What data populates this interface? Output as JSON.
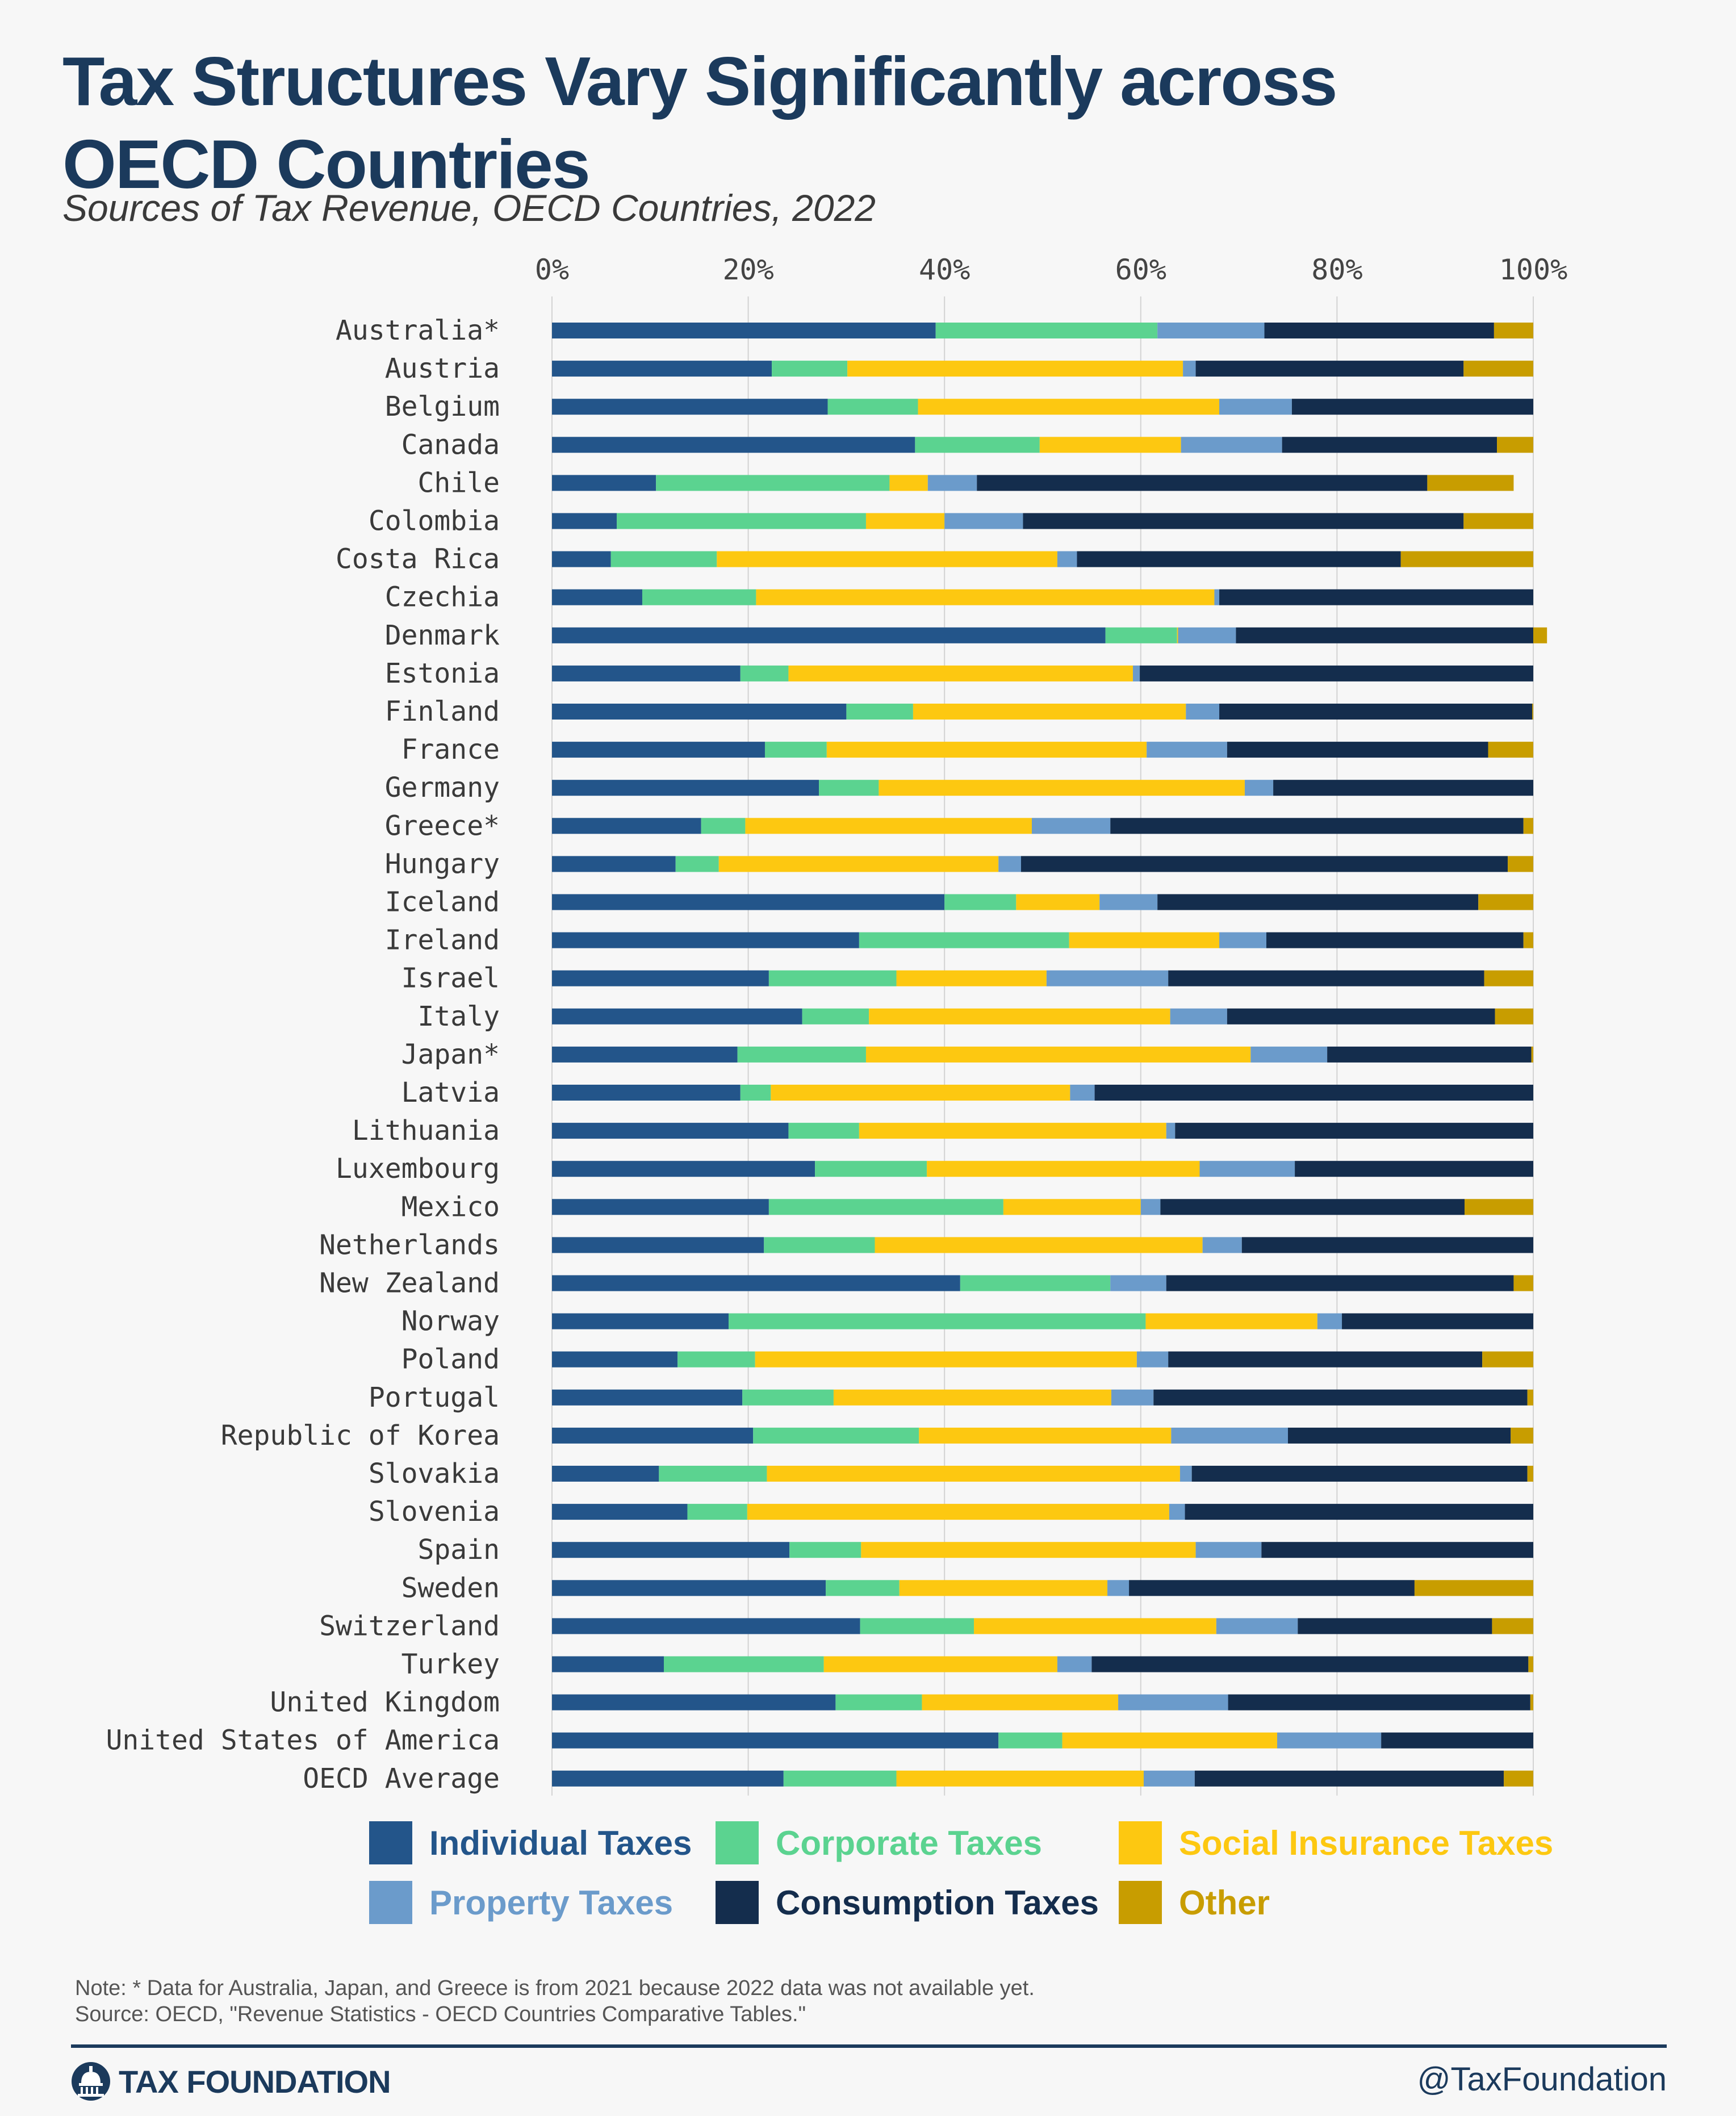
{
  "title": "Tax Structures Vary Significantly across OECD Countries",
  "subtitle": "Sources of Tax Revenue, OECD Countries, 2022",
  "chart_data": {
    "type": "bar",
    "orientation": "horizontal",
    "stacked": true,
    "x_ticks": [
      "0%",
      "20%",
      "40%",
      "60%",
      "80%",
      "100%"
    ],
    "xlim": [
      0,
      100
    ],
    "grid": true,
    "legend_position": "bottom",
    "categories": [
      "Australia*",
      "Austria",
      "Belgium",
      "Canada",
      "Chile",
      "Colombia",
      "Costa Rica",
      "Czechia",
      "Denmark",
      "Estonia",
      "Finland",
      "France",
      "Germany",
      "Greece*",
      "Hungary",
      "Iceland",
      "Ireland",
      "Israel",
      "Italy",
      "Japan*",
      "Latvia",
      "Lithuania",
      "Luxembourg",
      "Mexico",
      "Netherlands",
      "New Zealand",
      "Norway",
      "Poland",
      "Portugal",
      "Republic of Korea",
      "Slovakia",
      "Slovenia",
      "Spain",
      "Sweden",
      "Switzerland",
      "Turkey",
      "United Kingdom",
      "United States of America",
      "OECD Average"
    ],
    "series": [
      {
        "name": "Individual Taxes",
        "color": "#23558a",
        "values": [
          39.1,
          22.4,
          28.1,
          37.0,
          10.6,
          6.6,
          6.0,
          9.2,
          56.4,
          19.2,
          30.0,
          21.7,
          27.2,
          15.2,
          12.6,
          40.0,
          31.3,
          22.1,
          25.5,
          18.9,
          19.2,
          24.1,
          26.8,
          22.1,
          21.6,
          41.6,
          18.0,
          12.8,
          19.4,
          20.5,
          10.9,
          13.8,
          24.2,
          27.9,
          31.4,
          11.4,
          28.9,
          45.5,
          23.6
        ]
      },
      {
        "name": "Corporate Taxes",
        "color": "#5bd390",
        "values": [
          22.6,
          7.7,
          9.2,
          12.7,
          23.8,
          25.4,
          10.8,
          11.6,
          7.3,
          4.9,
          6.8,
          6.3,
          6.1,
          4.5,
          4.4,
          7.3,
          21.4,
          13.0,
          6.8,
          13.1,
          3.1,
          7.2,
          11.4,
          23.9,
          11.3,
          15.3,
          42.5,
          7.9,
          9.3,
          16.9,
          11.0,
          6.1,
          7.3,
          7.5,
          11.6,
          16.3,
          8.8,
          6.5,
          11.5
        ]
      },
      {
        "name": "Social Insurance Taxes",
        "color": "#fdc811",
        "values": [
          0.0,
          34.2,
          30.7,
          14.4,
          3.9,
          8.0,
          34.7,
          46.7,
          0.1,
          35.1,
          27.8,
          32.6,
          37.3,
          29.2,
          28.5,
          8.5,
          15.3,
          15.3,
          30.7,
          39.2,
          30.5,
          31.3,
          27.8,
          14.0,
          33.4,
          0.0,
          17.5,
          38.9,
          28.3,
          25.7,
          42.1,
          43.0,
          34.1,
          21.2,
          24.7,
          23.8,
          20.0,
          21.9,
          25.2
        ]
      },
      {
        "name": "Property Taxes",
        "color": "#6b9bcb",
        "values": [
          10.9,
          1.3,
          7.4,
          10.3,
          5.0,
          8.0,
          2.0,
          0.5,
          5.9,
          0.7,
          3.4,
          8.2,
          2.9,
          8.0,
          2.3,
          5.9,
          4.8,
          12.4,
          5.8,
          7.8,
          2.5,
          0.9,
          9.7,
          2.0,
          4.0,
          5.7,
          2.5,
          3.2,
          4.3,
          11.9,
          1.2,
          1.6,
          6.7,
          2.2,
          8.3,
          3.5,
          11.2,
          10.6,
          5.2
        ]
      },
      {
        "name": "Consumption Taxes",
        "color": "#142d4d",
        "values": [
          23.4,
          27.3,
          24.6,
          21.9,
          45.9,
          44.9,
          33.0,
          32.0,
          30.3,
          40.1,
          31.9,
          26.6,
          26.5,
          42.1,
          49.6,
          32.7,
          26.2,
          32.2,
          27.3,
          20.8,
          44.7,
          36.5,
          24.3,
          31.0,
          29.7,
          35.4,
          19.5,
          32.0,
          38.1,
          22.7,
          34.2,
          35.5,
          27.7,
          29.1,
          19.8,
          44.5,
          30.8,
          15.5,
          31.5
        ]
      },
      {
        "name": "Other",
        "color": "#c89d00",
        "values": [
          4.0,
          7.1,
          0.0,
          3.7,
          8.8,
          7.1,
          13.5,
          0.0,
          1.4,
          0.0,
          0.1,
          4.6,
          0.0,
          1.0,
          2.6,
          5.6,
          1.0,
          5.0,
          3.9,
          0.2,
          0.0,
          0.0,
          0.0,
          7.0,
          0.0,
          2.0,
          0.0,
          5.2,
          0.6,
          2.3,
          0.6,
          0.0,
          0.0,
          12.1,
          4.2,
          0.5,
          0.3,
          0.0,
          3.0
        ]
      }
    ]
  },
  "legend": {
    "items": [
      {
        "label": "Individual Taxes",
        "color": "#23558a",
        "text_color": "#23558a"
      },
      {
        "label": "Corporate Taxes",
        "color": "#5bd390",
        "text_color": "#5bd390"
      },
      {
        "label": "Social Insurance Taxes",
        "color": "#fdc811",
        "text_color": "#fdc811"
      },
      {
        "label": "Property Taxes",
        "color": "#6b9bcb",
        "text_color": "#6b9bcb"
      },
      {
        "label": "Consumption Taxes",
        "color": "#142d4d",
        "text_color": "#142d4d"
      },
      {
        "label": "Other",
        "color": "#c89d00",
        "text_color": "#c89d00"
      }
    ]
  },
  "note": "Note: * Data for Australia, Japan, and Greece is from 2021 because 2022 data was not available yet.",
  "source": "Source: OECD, \"Revenue Statistics - OECD Countries Comparative Tables.\"",
  "footer": {
    "logo_text": "TAX FOUNDATION",
    "logo_icon": "capitol-dome-icon",
    "handle": "@TaxFoundation"
  }
}
